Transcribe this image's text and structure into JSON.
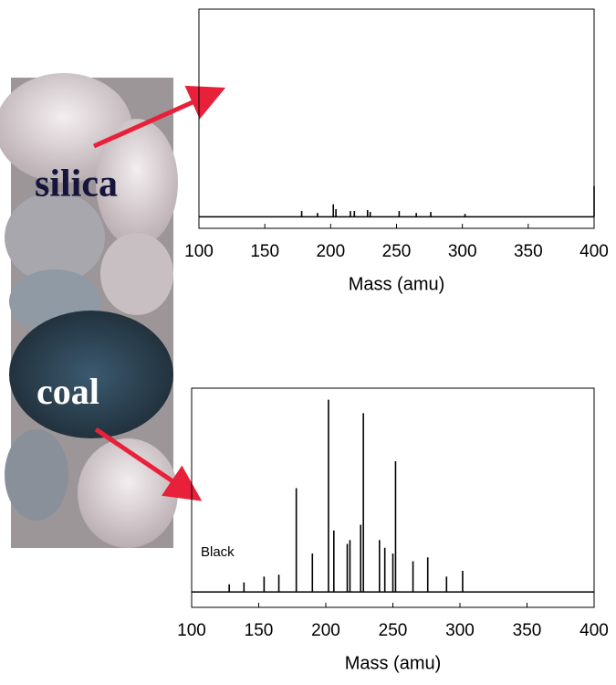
{
  "photo": {
    "labels": [
      "silica",
      "coal"
    ]
  },
  "chart_data": [
    {
      "type": "stem",
      "xlabel": "Mass (amu)",
      "color": "#000000",
      "x": [
        178,
        190,
        202,
        204,
        215,
        218,
        228,
        230,
        252,
        265,
        276,
        302,
        400
      ],
      "values": [
        3,
        2,
        6.5,
        4,
        3,
        3,
        3.5,
        2.5,
        3,
        2,
        2.5,
        1.5,
        16
      ],
      "xlim": [
        100,
        400
      ],
      "ylim": [
        -6,
        108
      ],
      "xticks": [
        100,
        150,
        200,
        250,
        300,
        350,
        400
      ]
    },
    {
      "type": "stem",
      "xlabel": "Mass (amu)",
      "annotation": "Black",
      "color": "#000000",
      "x": [
        128,
        139,
        154,
        165,
        178,
        190,
        202,
        206,
        216,
        218,
        226,
        228,
        240,
        244,
        250,
        252,
        265,
        276,
        290,
        302
      ],
      "values": [
        4,
        5,
        8,
        9,
        54,
        20,
        100,
        32,
        25,
        27,
        35,
        93,
        27,
        23,
        20,
        68,
        16,
        18,
        8,
        11
      ],
      "xlim": [
        100,
        400
      ],
      "ylim": [
        -8,
        106
      ],
      "xticks": [
        100,
        150,
        200,
        250,
        300,
        350,
        400
      ]
    }
  ]
}
